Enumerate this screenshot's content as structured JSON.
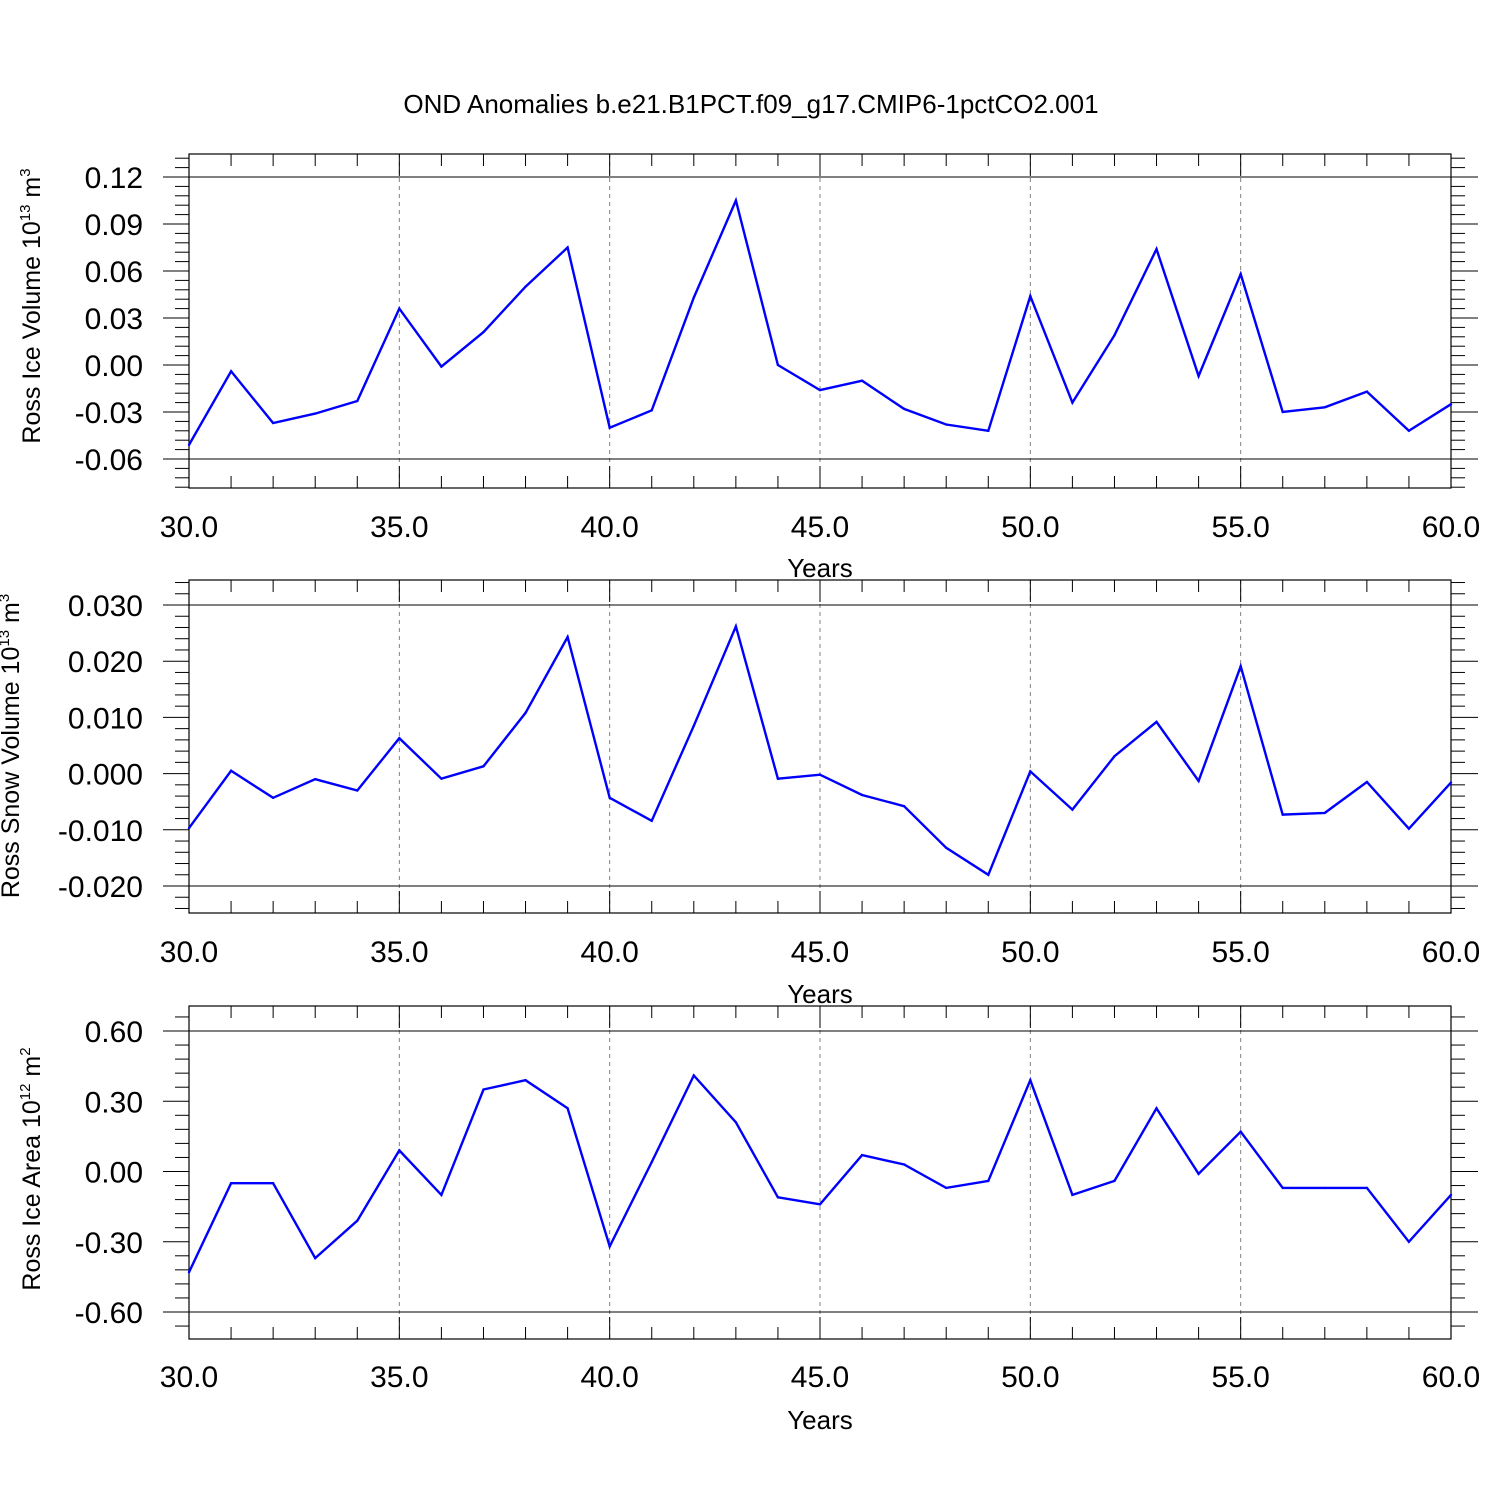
{
  "chart_data": [
    {
      "type": "line",
      "title": "OND Anomalies b.e21.B1PCT.f09_g17.CMIP6-1pctCO2.001",
      "ylabel": "Ross Ice Volume 10",
      "ylabel_exp": "13",
      "ylabel_unit": "m",
      "ylabel_unit_exp": "3",
      "xlabel": "Years",
      "xlim": [
        30,
        60
      ],
      "ylim": [
        -0.06,
        0.12
      ],
      "yticks": [
        -0.06,
        -0.03,
        0.0,
        0.03,
        0.06,
        0.09,
        0.12
      ],
      "ytick_labels": [
        "-0.06",
        "-0.03",
        "0.00",
        "0.03",
        "0.06",
        "0.09",
        "0.12"
      ],
      "xticks": [
        30,
        35,
        40,
        45,
        50,
        55,
        60
      ],
      "xtick_labels": [
        "30.0",
        "35.0",
        "40.0",
        "45.0",
        "50.0",
        "55.0",
        "60.0"
      ],
      "grid": "vertical dashed at major x ticks",
      "line_color": "#0000ff",
      "x": [
        30,
        31,
        32,
        33,
        34,
        35,
        36,
        37,
        38,
        39,
        40,
        41,
        42,
        43,
        44,
        45,
        46,
        47,
        48,
        49,
        50,
        51,
        52,
        53,
        54,
        55,
        56,
        57,
        58,
        59,
        60
      ],
      "values": [
        -0.051,
        -0.004,
        -0.037,
        -0.031,
        -0.023,
        0.036,
        -0.001,
        0.021,
        0.05,
        0.075,
        -0.04,
        -0.029,
        0.043,
        0.105,
        0.0,
        -0.016,
        -0.01,
        -0.028,
        -0.038,
        -0.042,
        0.044,
        -0.024,
        0.019,
        0.074,
        -0.007,
        0.058,
        -0.03,
        -0.027,
        -0.017,
        -0.042,
        -0.025
      ]
    },
    {
      "type": "line",
      "ylabel": "Ross Snow Volume 10",
      "ylabel_exp": "13",
      "ylabel_unit": "m",
      "ylabel_unit_exp": "3",
      "xlabel": "Years",
      "xlim": [
        30,
        60
      ],
      "ylim": [
        -0.02,
        0.03
      ],
      "yticks": [
        -0.02,
        -0.01,
        0.0,
        0.01,
        0.02,
        0.03
      ],
      "ytick_labels": [
        "-0.020",
        "-0.010",
        "0.000",
        "0.010",
        "0.020",
        "0.030"
      ],
      "xticks": [
        30,
        35,
        40,
        45,
        50,
        55,
        60
      ],
      "xtick_labels": [
        "30.0",
        "35.0",
        "40.0",
        "45.0",
        "50.0",
        "55.0",
        "60.0"
      ],
      "grid": "vertical dashed at major x ticks",
      "line_color": "#0000ff",
      "x": [
        30,
        31,
        32,
        33,
        34,
        35,
        36,
        37,
        38,
        39,
        40,
        41,
        42,
        43,
        44,
        45,
        46,
        47,
        48,
        49,
        50,
        51,
        52,
        53,
        54,
        55,
        56,
        57,
        58,
        59,
        60
      ],
      "values": [
        -0.0097,
        0.0005,
        -0.0043,
        -0.001,
        -0.003,
        0.0063,
        -0.0009,
        0.0013,
        0.0108,
        0.0243,
        -0.0043,
        -0.0084,
        0.0085,
        0.0262,
        -0.0009,
        -0.0002,
        -0.0038,
        -0.0058,
        -0.0132,
        -0.018,
        0.0004,
        -0.0064,
        0.0031,
        0.0092,
        -0.0013,
        0.0191,
        -0.0073,
        -0.007,
        -0.0015,
        -0.0098,
        -0.0016
      ]
    },
    {
      "type": "line",
      "ylabel": "Ross Ice Area 10",
      "ylabel_exp": "12",
      "ylabel_unit": "m",
      "ylabel_unit_exp": "2",
      "xlabel": "Years",
      "xlim": [
        30,
        60
      ],
      "ylim": [
        -0.6,
        0.6
      ],
      "yticks": [
        -0.6,
        -0.3,
        0.0,
        0.3,
        0.6
      ],
      "ytick_labels": [
        "-0.60",
        "-0.30",
        "0.00",
        "0.30",
        "0.60"
      ],
      "xticks": [
        30,
        35,
        40,
        45,
        50,
        55,
        60
      ],
      "xtick_labels": [
        "30.0",
        "35.0",
        "40.0",
        "45.0",
        "50.0",
        "55.0",
        "60.0"
      ],
      "grid": "vertical dashed at major x ticks",
      "line_color": "#0000ff",
      "x": [
        30,
        31,
        32,
        33,
        34,
        35,
        36,
        37,
        38,
        39,
        40,
        41,
        42,
        43,
        44,
        45,
        46,
        47,
        48,
        49,
        50,
        51,
        52,
        53,
        54,
        55,
        56,
        57,
        58,
        59,
        60
      ],
      "values": [
        -0.43,
        -0.05,
        -0.05,
        -0.37,
        -0.21,
        0.09,
        -0.1,
        0.35,
        0.39,
        0.27,
        -0.32,
        0.04,
        0.41,
        0.21,
        -0.11,
        -0.14,
        0.07,
        0.03,
        -0.07,
        -0.04,
        0.39,
        -0.1,
        -0.04,
        0.27,
        -0.01,
        0.17,
        -0.07,
        -0.07,
        -0.07,
        -0.3,
        -0.1
      ]
    }
  ]
}
